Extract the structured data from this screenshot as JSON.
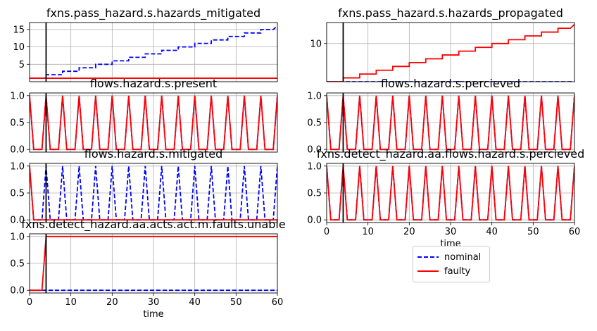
{
  "chart_data": {
    "type": "line",
    "x_label": "time",
    "time_range": [
      0,
      60
    ],
    "fault_time": 4,
    "legend": {
      "placement": "lower-center",
      "entries": [
        {
          "name": "nominal",
          "color": "#0000ff",
          "style": "dashed"
        },
        {
          "name": "faulty",
          "color": "#ff0000",
          "style": "solid"
        }
      ]
    },
    "grid": true,
    "panels": [
      {
        "title": "fxns.pass_hazard.s.hazards_mitigated",
        "ylim": [
          0,
          17
        ],
        "yticks": [
          "5",
          "10",
          "15"
        ],
        "show_xticks": false,
        "series": [
          {
            "name": "nominal",
            "color": "#0000ff",
            "dashed": true,
            "x": [
              0,
              4,
              4,
              8,
              8,
              12,
              12,
              16,
              16,
              20,
              20,
              24,
              24,
              28,
              28,
              32,
              32,
              36,
              36,
              40,
              40,
              44,
              44,
              48,
              48,
              52,
              52,
              56,
              56,
              59,
              60
            ],
            "y": [
              1,
              1,
              2,
              2,
              3,
              3,
              4,
              4,
              5,
              5,
              6,
              6,
              7,
              7,
              8,
              8,
              9,
              9,
              10,
              10,
              11,
              11,
              12,
              12,
              13,
              13,
              14,
              14,
              15,
              15,
              16
            ]
          },
          {
            "name": "faulty",
            "color": "#ff0000",
            "dashed": false,
            "x": [
              0,
              60
            ],
            "y": [
              1,
              1
            ]
          }
        ]
      },
      {
        "title": "fxns.pass_hazard.s.hazards_propagated",
        "ylim": [
          0,
          15.5
        ],
        "yticks": [
          "10"
        ],
        "show_xticks": false,
        "series": [
          {
            "name": "nominal",
            "color": "#0000ff",
            "dashed": true,
            "x": [
              0,
              60
            ],
            "y": [
              0,
              0
            ]
          },
          {
            "name": "faulty",
            "color": "#ff0000",
            "dashed": false,
            "x": [
              0,
              4,
              4,
              8,
              8,
              12,
              12,
              16,
              16,
              20,
              20,
              24,
              24,
              28,
              28,
              32,
              32,
              36,
              36,
              40,
              40,
              44,
              44,
              48,
              48,
              52,
              52,
              56,
              56,
              59,
              60
            ],
            "y": [
              0,
              0,
              1,
              1,
              2,
              2,
              3,
              3,
              4,
              4,
              5,
              5,
              6,
              6,
              7,
              7,
              8,
              8,
              9,
              9,
              10,
              10,
              11,
              11,
              12,
              12,
              13,
              13,
              14,
              14,
              15
            ]
          }
        ]
      },
      {
        "title": "flows.hazard.s.present",
        "ylim": [
          -0.05,
          1.05
        ],
        "yticks": [
          "0.0",
          "0.5",
          "1.0"
        ],
        "show_xticks": false,
        "series": [
          {
            "name": "nominal",
            "color": "#0000ff",
            "dashed": true,
            "pattern": "spikes",
            "y_first": 1,
            "y_last": 1
          },
          {
            "name": "faulty",
            "color": "#ff0000",
            "dashed": false,
            "pattern": "spikes",
            "y_first": 1,
            "y_last": 1
          }
        ]
      },
      {
        "title": "flows.hazard.s.percieved",
        "ylim": [
          -0.05,
          1.05
        ],
        "yticks": [
          "0.0",
          "0.5",
          "1.0"
        ],
        "show_xticks": false,
        "series": [
          {
            "name": "nominal",
            "color": "#0000ff",
            "dashed": true,
            "pattern": "spikes",
            "y_first": 1,
            "y_last": 1
          },
          {
            "name": "faulty",
            "color": "#ff0000",
            "dashed": false,
            "pattern": "spikes",
            "y_first": 1,
            "y_last": 1
          }
        ]
      },
      {
        "title": "flows.hazard.s.mitigated",
        "ylim": [
          -0.05,
          1.05
        ],
        "yticks": [
          "0.0",
          "0.5",
          "1.0"
        ],
        "show_xticks": false,
        "series": [
          {
            "name": "nominal",
            "color": "#0000ff",
            "dashed": true,
            "pattern": "spikes",
            "y_first": 1,
            "y_last": 1
          },
          {
            "name": "faulty",
            "color": "#ff0000",
            "dashed": false,
            "x": [
              0,
              1,
              60
            ],
            "y": [
              1,
              0,
              0
            ]
          }
        ]
      },
      {
        "title": "fxns.detect_hazard.aa.flows.hazard.s.percieved",
        "ylim": [
          -0.05,
          1.05
        ],
        "yticks": [
          "0.0",
          "0.5",
          "1.0"
        ],
        "show_xticks": true,
        "xticks": [
          "0",
          "10",
          "20",
          "30",
          "40",
          "50",
          "60"
        ],
        "series": [
          {
            "name": "nominal",
            "color": "#0000ff",
            "dashed": true,
            "pattern": "spikes",
            "y_first": 1,
            "y_last": 1
          },
          {
            "name": "faulty",
            "color": "#ff0000",
            "dashed": false,
            "pattern": "spikes",
            "y_first": 1,
            "y_last": 1
          }
        ]
      },
      {
        "title": "fxns.detect_hazard.aa.acts.act.m.faults.unable",
        "ylim": [
          -0.05,
          1.05
        ],
        "yticks": [
          "0.0",
          "0.5",
          "1.0"
        ],
        "show_xticks": true,
        "xticks": [
          "0",
          "10",
          "20",
          "30",
          "40",
          "50",
          "60"
        ],
        "series": [
          {
            "name": "nominal",
            "color": "#0000ff",
            "dashed": true,
            "x": [
              0,
              60
            ],
            "y": [
              0,
              0
            ]
          },
          {
            "name": "faulty",
            "color": "#ff0000",
            "dashed": false,
            "x": [
              0,
              3,
              4,
              60
            ],
            "y": [
              0,
              0,
              1,
              1
            ]
          }
        ]
      }
    ]
  }
}
